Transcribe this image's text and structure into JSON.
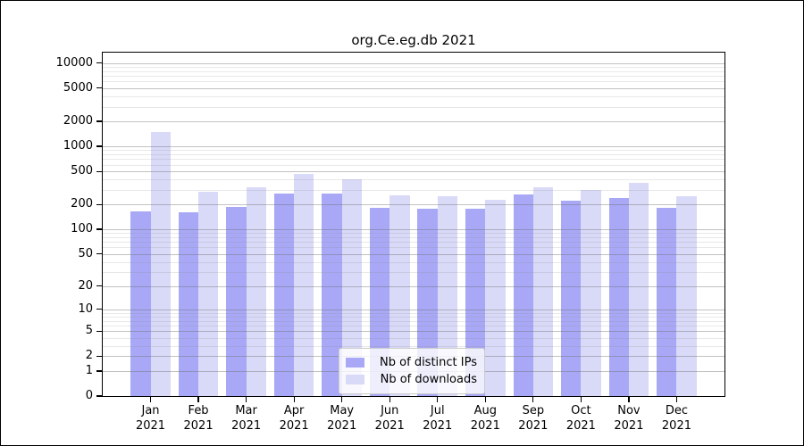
{
  "figure": {
    "title": "org.Ce.eg.db 2021"
  },
  "chart_data": {
    "type": "bar",
    "title": "org.Ce.eg.db 2021",
    "categories": [
      "Jan 2021",
      "Feb 2021",
      "Mar 2021",
      "Apr 2021",
      "May 2021",
      "Jun 2021",
      "Jul 2021",
      "Aug 2021",
      "Sep 2021",
      "Oct 2021",
      "Nov 2021",
      "Dec 2021"
    ],
    "series": [
      {
        "name": "Nb of distinct IPs",
        "color": "#a8a8f6",
        "values": [
          165,
          162,
          188,
          270,
          270,
          180,
          177,
          177,
          265,
          222,
          237,
          183
        ]
      },
      {
        "name": "Nb of downloads",
        "color": "#d9d9f8",
        "values": [
          1500,
          285,
          320,
          460,
          400,
          257,
          250,
          227,
          320,
          295,
          360,
          250
        ]
      }
    ],
    "yscale": "log10(1+v)",
    "y_tick_values": [
      0,
      1,
      2,
      5,
      10,
      20,
      50,
      100,
      200,
      500,
      1000,
      2000,
      5000,
      10000
    ],
    "y_minor_gridlines": [
      3,
      4,
      6,
      7,
      8,
      9,
      30,
      40,
      60,
      70,
      80,
      90,
      300,
      400,
      600,
      700,
      800,
      900,
      3000,
      4000,
      6000,
      7000,
      8000,
      9000
    ],
    "ylim": [
      0,
      13000
    ],
    "xlabel": "",
    "ylabel": "",
    "grid": "horizontal major+minor",
    "legend_position": "lower center",
    "legend_labels": [
      "Nb of distinct IPs",
      "Nb of downloads"
    ]
  },
  "colors": {
    "bar_distinct_ips": "#a8a8f6",
    "bar_downloads": "#d9d9f8",
    "axis": "#000000",
    "grid_major": "rgba(110,110,110,0.42)",
    "grid_minor": "rgba(140,140,140,0.20)",
    "legend_bg": "rgba(255,255,255,0.8)",
    "legend_border": "#cccccc"
  }
}
